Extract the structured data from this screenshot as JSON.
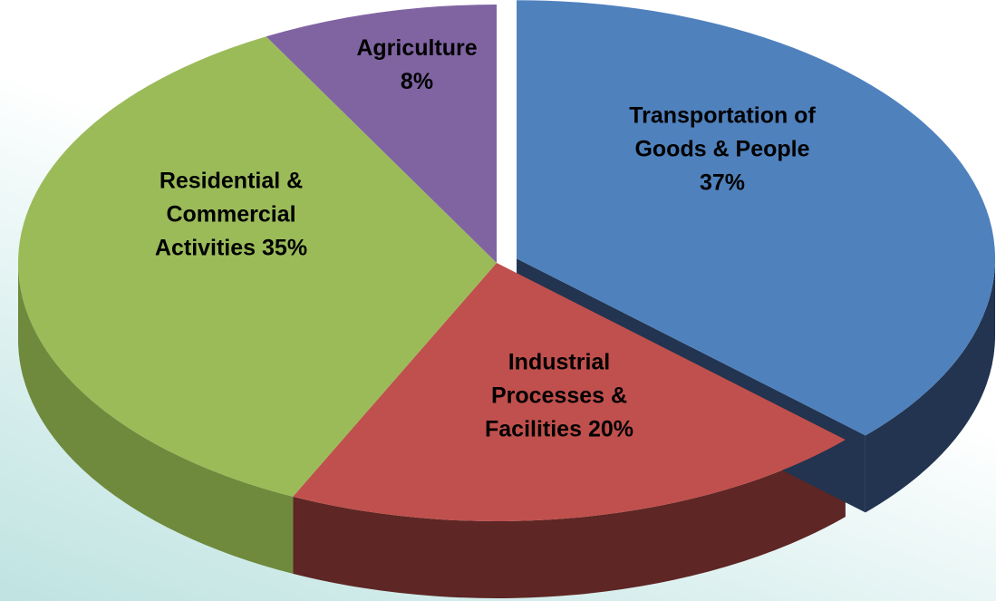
{
  "chart_data": {
    "type": "pie",
    "categories": [
      "Transportation of Goods & People",
      "Industrial Processes & Facilities",
      "Residential & Commercial Activities",
      "Agriculture"
    ],
    "values": [
      37,
      20,
      35,
      8
    ],
    "value_labels": [
      "37%",
      "20%",
      "35%",
      "8%"
    ],
    "colors": [
      "#4f81bd",
      "#c0504d",
      "#9bbb59",
      "#8064a2"
    ],
    "side_colors": [
      "#22344f",
      "#5e2624",
      "#6f8a3c",
      "#5b4777"
    ],
    "exploded": [
      true,
      false,
      false,
      false
    ]
  }
}
